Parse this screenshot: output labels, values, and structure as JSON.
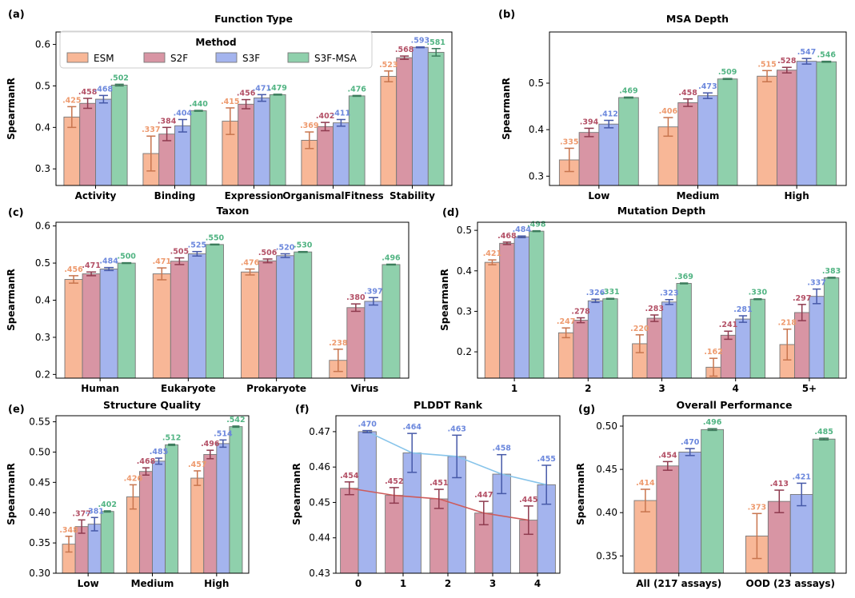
{
  "colors": {
    "ESM": "#f8b797",
    "S2F": "#d895a4",
    "S3F": "#a4b4ee",
    "S3F-MSA": "#8fd0ac",
    "ESM_label": "#ee9a6e",
    "S2F_label": "#b35066",
    "S3F_label": "#6c88dd",
    "S3F-MSA_label": "#52b483",
    "ESM_err": "#c8754e",
    "S2F_err": "#8f3b4f",
    "S3F_err": "#4659a8",
    "S3F-MSA_err": "#3c7d5c",
    "line_S2F": "#cd5b5b",
    "line_S3F": "#87c4ea"
  },
  "legend": {
    "title": "Method",
    "items": [
      "ESM",
      "S2F",
      "S3F",
      "S3F-MSA"
    ]
  },
  "chart_data": [
    {
      "panel": "(a)",
      "type": "bar",
      "title": "Function Type",
      "ylabel": "SpearmanR",
      "ylim": [
        0.26,
        0.63
      ],
      "yticks": [
        "0.3",
        "0.4",
        "0.5",
        "0.6"
      ],
      "categories": [
        "Activity",
        "Binding",
        "Expression",
        "OrganismalFitness",
        "Stability"
      ],
      "series": [
        {
          "name": "ESM",
          "values": [
            0.425,
            0.337,
            0.415,
            0.369,
            0.523
          ],
          "labels": [
            ".425",
            ".337",
            ".415",
            ".369",
            ".523"
          ],
          "err": [
            0.025,
            0.042,
            0.032,
            0.02,
            0.013
          ]
        },
        {
          "name": "S2F",
          "values": [
            0.458,
            0.384,
            0.456,
            0.402,
            0.568
          ],
          "labels": [
            ".458",
            ".384",
            ".456",
            ".402",
            ".568"
          ],
          "err": [
            0.012,
            0.016,
            0.011,
            0.01,
            0.004
          ]
        },
        {
          "name": "S3F",
          "values": [
            0.468,
            0.404,
            0.471,
            0.411,
            0.593
          ],
          "labels": [
            ".468",
            ".404",
            ".471",
            ".411",
            ".593"
          ],
          "err": [
            0.009,
            0.015,
            0.008,
            0.008,
            0.001
          ]
        },
        {
          "name": "S3F-MSA",
          "values": [
            0.502,
            0.44,
            0.479,
            0.476,
            0.581
          ],
          "labels": [
            ".502",
            ".440",
            ".479",
            ".476",
            ".581"
          ],
          "err": [
            0.002,
            0.001,
            0.001,
            0.001,
            0.009
          ]
        }
      ],
      "legend": "top-left"
    },
    {
      "panel": "(b)",
      "type": "bar",
      "title": "MSA Depth",
      "ylabel": "SpearmanR",
      "ylim": [
        0.28,
        0.61
      ],
      "yticks": [
        "0.3",
        "0.4",
        "0.5"
      ],
      "categories": [
        "Low",
        "Medium",
        "High"
      ],
      "series": [
        {
          "name": "ESM",
          "values": [
            0.335,
            0.406,
            0.515
          ],
          "labels": [
            ".335",
            ".406",
            ".515"
          ],
          "err": [
            0.025,
            0.02,
            0.012
          ]
        },
        {
          "name": "S2F",
          "values": [
            0.394,
            0.458,
            0.528
          ],
          "labels": [
            ".394",
            ".458",
            ".528"
          ],
          "err": [
            0.009,
            0.008,
            0.006
          ]
        },
        {
          "name": "S3F",
          "values": [
            0.412,
            0.473,
            0.547
          ],
          "labels": [
            ".412",
            ".473",
            ".547"
          ],
          "err": [
            0.008,
            0.006,
            0.006
          ]
        },
        {
          "name": "S3F-MSA",
          "values": [
            0.469,
            0.509,
            0.546
          ],
          "labels": [
            ".469",
            ".509",
            ".546"
          ],
          "err": [
            0.001,
            0.001,
            0.001
          ]
        }
      ]
    },
    {
      "panel": "(c)",
      "type": "bar",
      "title": "Taxon",
      "ylabel": "SpearmanR",
      "ylim": [
        0.19,
        0.61
      ],
      "yticks": [
        "0.2",
        "0.3",
        "0.4",
        "0.5",
        "0.6"
      ],
      "categories": [
        "Human",
        "Eukaryote",
        "Prokaryote",
        "Virus"
      ],
      "series": [
        {
          "name": "ESM",
          "values": [
            0.456,
            0.471,
            0.476,
            0.238
          ],
          "labels": [
            ".456",
            ".471",
            ".476",
            ".238"
          ],
          "err": [
            0.01,
            0.016,
            0.008,
            0.03
          ]
        },
        {
          "name": "S2F",
          "values": [
            0.471,
            0.505,
            0.506,
            0.38
          ],
          "labels": [
            ".471",
            ".505",
            ".506",
            ".380"
          ],
          "err": [
            0.005,
            0.009,
            0.005,
            0.01
          ]
        },
        {
          "name": "S3F",
          "values": [
            0.484,
            0.525,
            0.52,
            0.397
          ],
          "labels": [
            ".484",
            ".525",
            ".520",
            ".397"
          ],
          "err": [
            0.004,
            0.006,
            0.005,
            0.01
          ]
        },
        {
          "name": "S3F-MSA",
          "values": [
            0.5,
            0.55,
            0.53,
            0.496
          ],
          "labels": [
            ".500",
            ".550",
            ".530",
            ".496"
          ],
          "err": [
            0.001,
            0.001,
            0.001,
            0.001
          ]
        }
      ]
    },
    {
      "panel": "(d)",
      "type": "bar",
      "title": "Mutation Depth",
      "ylabel": "SpearmanR",
      "ylim": [
        0.135,
        0.52
      ],
      "yticks": [
        "0.2",
        "0.3",
        "0.4",
        "0.5"
      ],
      "categories": [
        "1",
        "2",
        "3",
        "4",
        "5+"
      ],
      "series": [
        {
          "name": "ESM",
          "values": [
            0.421,
            0.247,
            0.22,
            0.162,
            0.218
          ],
          "labels": [
            ".421",
            ".247",
            ".220",
            ".162",
            ".218"
          ],
          "err": [
            0.006,
            0.012,
            0.022,
            0.022,
            0.038
          ]
        },
        {
          "name": "S2F",
          "values": [
            0.468,
            0.278,
            0.283,
            0.241,
            0.297
          ],
          "labels": [
            ".468",
            ".278",
            ".283",
            ".241",
            ".297"
          ],
          "err": [
            0.003,
            0.006,
            0.008,
            0.01,
            0.02
          ]
        },
        {
          "name": "S3F",
          "values": [
            0.484,
            0.326,
            0.323,
            0.281,
            0.337
          ],
          "labels": [
            ".484",
            ".326",
            ".323",
            ".281",
            ".337"
          ],
          "err": [
            0.002,
            0.004,
            0.006,
            0.008,
            0.018
          ]
        },
        {
          "name": "S3F-MSA",
          "values": [
            0.498,
            0.331,
            0.369,
            0.33,
            0.383
          ],
          "labels": [
            ".498",
            ".331",
            ".369",
            ".330",
            ".383"
          ],
          "err": [
            0.001,
            0.001,
            0.001,
            0.001,
            0.001
          ]
        }
      ]
    },
    {
      "panel": "(e)",
      "type": "bar",
      "title": "Structure Quality",
      "ylabel": "SpearmanR",
      "ylim": [
        0.3,
        0.56
      ],
      "yticks": [
        "0.30",
        "0.35",
        "0.40",
        "0.45",
        "0.50",
        "0.55"
      ],
      "categories": [
        "Low",
        "Medium",
        "High"
      ],
      "series": [
        {
          "name": "ESM",
          "values": [
            0.348,
            0.426,
            0.457
          ],
          "labels": [
            ".348",
            ".426",
            ".457"
          ],
          "err": [
            0.013,
            0.02,
            0.012
          ]
        },
        {
          "name": "S2F",
          "values": [
            0.377,
            0.468,
            0.496
          ],
          "labels": [
            ".377",
            ".468",
            ".496"
          ],
          "err": [
            0.011,
            0.006,
            0.007
          ]
        },
        {
          "name": "S3F",
          "values": [
            0.381,
            0.485,
            0.514
          ],
          "labels": [
            ".381",
            ".485",
            ".514"
          ],
          "err": [
            0.011,
            0.005,
            0.006
          ]
        },
        {
          "name": "S3F-MSA",
          "values": [
            0.402,
            0.512,
            0.542
          ],
          "labels": [
            ".402",
            ".512",
            ".542"
          ],
          "err": [
            0.001,
            0.001,
            0.001
          ]
        }
      ]
    },
    {
      "panel": "(f)",
      "type": "bar",
      "title": "PLDDT Rank",
      "ylabel": "SpearmanR",
      "ylim": [
        0.43,
        0.4745
      ],
      "yticks": [
        "0.43",
        "0.44",
        "0.45",
        "0.46",
        "0.47"
      ],
      "categories": [
        "0",
        "1",
        "2",
        "3",
        "4"
      ],
      "series": [
        {
          "name": "S2F",
          "values": [
            0.454,
            0.452,
            0.451,
            0.447,
            0.445
          ],
          "labels": [
            ".454",
            ".452",
            ".451",
            ".447",
            ".445"
          ],
          "err": [
            0.0018,
            0.0022,
            0.0027,
            0.0033,
            0.004
          ]
        },
        {
          "name": "S3F",
          "values": [
            0.47,
            0.464,
            0.463,
            0.458,
            0.455
          ],
          "labels": [
            ".470",
            ".464",
            ".463",
            ".458",
            ".455"
          ],
          "err": [
            0.0003,
            0.0055,
            0.006,
            0.0055,
            0.0055
          ]
        }
      ],
      "lines": true
    },
    {
      "panel": "(g)",
      "type": "bar",
      "title": "Overall Performance",
      "ylabel": "SpearmanR",
      "ylim": [
        0.33,
        0.512
      ],
      "yticks": [
        "0.35",
        "0.40",
        "0.45",
        "0.50"
      ],
      "categories": [
        "All (217 assays)",
        "OOD (23 assays)"
      ],
      "series": [
        {
          "name": "ESM",
          "values": [
            0.414,
            0.373
          ],
          "labels": [
            ".414",
            ".373"
          ],
          "err": [
            0.013,
            0.026
          ]
        },
        {
          "name": "S2F",
          "values": [
            0.454,
            0.413
          ],
          "labels": [
            ".454",
            ".413"
          ],
          "err": [
            0.005,
            0.013
          ]
        },
        {
          "name": "S3F",
          "values": [
            0.47,
            0.421
          ],
          "labels": [
            ".470",
            ".421"
          ],
          "err": [
            0.004,
            0.013
          ]
        },
        {
          "name": "S3F-MSA",
          "values": [
            0.496,
            0.485
          ],
          "labels": [
            ".496",
            ".485"
          ],
          "err": [
            0.001,
            0.001
          ]
        }
      ]
    }
  ]
}
